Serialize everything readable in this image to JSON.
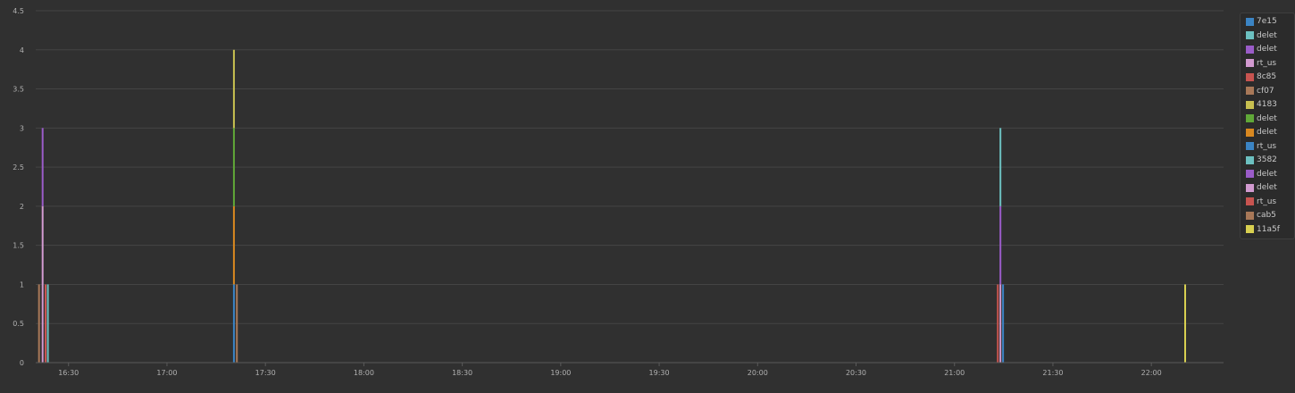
{
  "chart_data": {
    "type": "bar",
    "stacked": true,
    "y_ticks": [
      "0",
      "0.5",
      "1",
      "1.5",
      "2",
      "2.5",
      "3",
      "3.5",
      "4",
      "4.5"
    ],
    "ylim": [
      0,
      4.5
    ],
    "x_ticks": [
      "16:30",
      "17:00",
      "17:30",
      "18:00",
      "18:30",
      "19:00",
      "19:30",
      "20:00",
      "20:30",
      "21:00",
      "21:30",
      "22:00"
    ],
    "x_tick_minutes": [
      990,
      1020,
      1050,
      1080,
      1110,
      1140,
      1170,
      1200,
      1230,
      1260,
      1290,
      1320
    ],
    "xlim_minutes": [
      980,
      1342
    ],
    "grid": true,
    "legend_position": "right",
    "series": [
      {
        "name": "7e15",
        "color": "#3b84c4"
      },
      {
        "name": "delet",
        "color": "#6cc0c0"
      },
      {
        "name": "delet",
        "color": "#9a5cc8"
      },
      {
        "name": "rt_us",
        "color": "#d29ad0"
      },
      {
        "name": "8c85",
        "color": "#c85450"
      },
      {
        "name": "cf07",
        "color": "#a87858"
      },
      {
        "name": "4183",
        "color": "#c8c050"
      },
      {
        "name": "delet",
        "color": "#60a838"
      },
      {
        "name": "delet",
        "color": "#d88820"
      },
      {
        "name": "rt_us",
        "color": "#3b84c4"
      },
      {
        "name": "3582",
        "color": "#6cc0c0"
      },
      {
        "name": "delet",
        "color": "#9a5cc8"
      },
      {
        "name": "delet",
        "color": "#d29ad0"
      },
      {
        "name": "rt_us",
        "color": "#c85450"
      },
      {
        "name": "cab5",
        "color": "#a87858"
      },
      {
        "name": "11a5f",
        "color": "#d8d050"
      }
    ],
    "bars": [
      {
        "t": 981.0,
        "segments": [
          {
            "series": 5,
            "value": 1
          }
        ]
      },
      {
        "t": 982.1,
        "segments": [
          {
            "series": 3,
            "value": 2
          },
          {
            "series": 2,
            "value": 1
          }
        ]
      },
      {
        "t": 983.0,
        "segments": [
          {
            "series": 4,
            "value": 1
          }
        ]
      },
      {
        "t": 983.7,
        "segments": [
          {
            "series": 1,
            "value": 1
          }
        ]
      },
      {
        "t": 1040.4,
        "segments": [
          {
            "series": 0,
            "value": 1
          },
          {
            "series": 8,
            "value": 1
          },
          {
            "series": 7,
            "value": 1
          },
          {
            "series": 6,
            "value": 1
          }
        ]
      },
      {
        "t": 1041.3,
        "segments": [
          {
            "series": 14,
            "value": 1
          }
        ]
      },
      {
        "t": 1273.2,
        "segments": [
          {
            "series": 13,
            "value": 1
          }
        ]
      },
      {
        "t": 1274.0,
        "segments": [
          {
            "series": 12,
            "value": 1
          },
          {
            "series": 11,
            "value": 1
          },
          {
            "series": 10,
            "value": 1
          }
        ]
      },
      {
        "t": 1274.8,
        "segments": [
          {
            "series": 9,
            "value": 1
          }
        ]
      },
      {
        "t": 1330.3,
        "segments": [
          {
            "series": 15,
            "value": 1
          }
        ]
      }
    ]
  }
}
